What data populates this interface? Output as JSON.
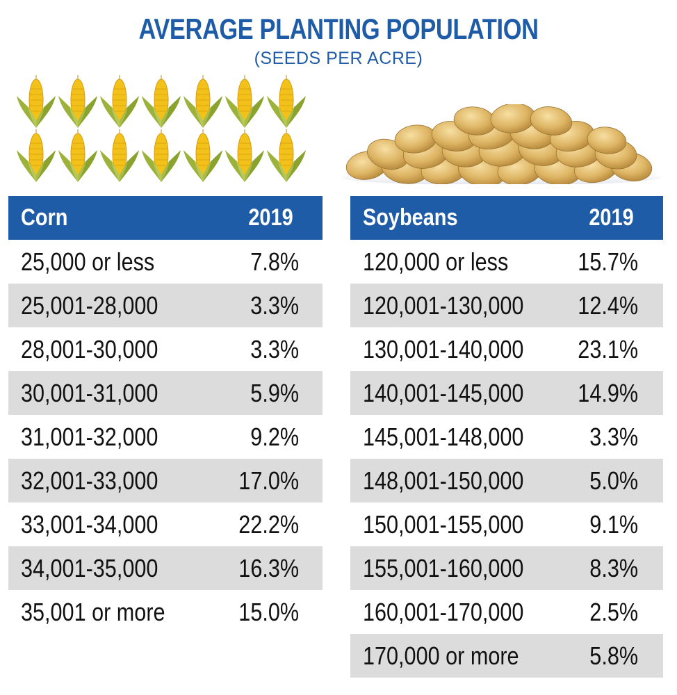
{
  "title": "AVERAGE PLANTING POPULATION",
  "subtitle": "(SEEDS PER ACRE)",
  "colors": {
    "header": "#1f5ca8",
    "stripe": "#dcdcdc",
    "title": "#1f5ca8"
  },
  "icons": {
    "corn": "corn-cob-icon",
    "soybeans": "soybean-pile-icon"
  },
  "chart_data": [
    {
      "type": "table",
      "columns": [
        "Corn",
        "2019"
      ],
      "rows": [
        [
          "25,000 or less",
          "7.8%"
        ],
        [
          "25,001-28,000",
          "3.3%"
        ],
        [
          "28,001-30,000",
          "3.3%"
        ],
        [
          "30,001-31,000",
          "5.9%"
        ],
        [
          "31,001-32,000",
          "9.2%"
        ],
        [
          "32,001-33,000",
          "17.0%"
        ],
        [
          "33,001-34,000",
          "22.2%"
        ],
        [
          "34,001-35,000",
          "16.3%"
        ],
        [
          "35,001 or more",
          "15.0%"
        ]
      ]
    },
    {
      "type": "table",
      "columns": [
        "Soybeans",
        "2019"
      ],
      "rows": [
        [
          "120,000 or less",
          "15.7%"
        ],
        [
          "120,001-130,000",
          "12.4%"
        ],
        [
          "130,001-140,000",
          "23.1%"
        ],
        [
          "140,001-145,000",
          "14.9%"
        ],
        [
          "145,001-148,000",
          "3.3%"
        ],
        [
          "148,001-150,000",
          "5.0%"
        ],
        [
          "150,001-155,000",
          "9.1%"
        ],
        [
          "155,001-160,000",
          "8.3%"
        ],
        [
          "160,001-170,000",
          "2.5%"
        ],
        [
          "170,000 or more",
          "5.8%"
        ]
      ]
    }
  ]
}
